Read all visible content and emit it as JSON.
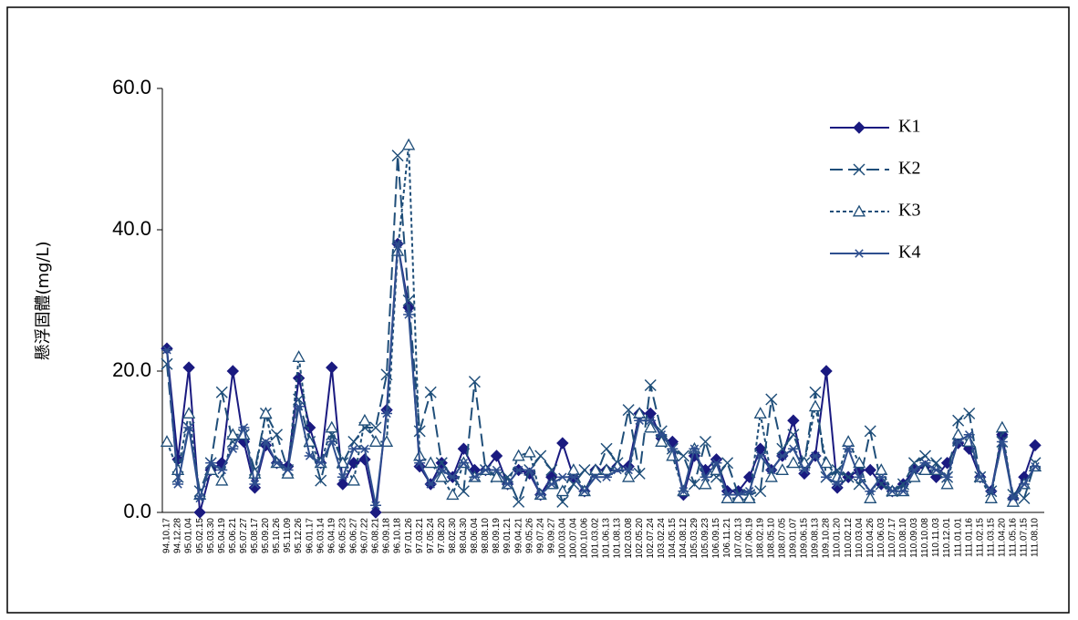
{
  "chart_data": {
    "type": "line",
    "y_label": "懸浮固體(mg/L)",
    "categories": [
      "94.10.17",
      "94.12.28",
      "95.01.04",
      "95.02.15",
      "95.03.30",
      "95.04.19",
      "95.06.21",
      "95.07.27",
      "95.08.17",
      "95.09.20",
      "95.10.26",
      "95.11.09",
      "95.12.26",
      "96.01.17",
      "96.03.14",
      "96.04.19",
      "96.05.23",
      "96.06.27",
      "96.07.22",
      "96.08.21",
      "96.09.18",
      "96.10.18",
      "97.01.26",
      "97.03.21",
      "97.05.24",
      "97.08.20",
      "98.02.30",
      "98.04.30",
      "98.06.04",
      "98.08.10",
      "98.09.19",
      "99.01.21",
      "99.04.21",
      "99.05.26",
      "99.07.24",
      "99.09.27",
      "100.03.04",
      "100.07.04",
      "100.10.06",
      "101.03.02",
      "101.06.13",
      "101.08.13",
      "102.03.08",
      "102.05.20",
      "102.07.24",
      "103.02.24",
      "104.05.15",
      "104.08.12",
      "105.03.29",
      "105.09.23",
      "106.09.15",
      "106.11.21",
      "107.02.13",
      "107.06.19",
      "108.02.19",
      "108.05.10",
      "108.07.05",
      "109.01.07",
      "109.06.15",
      "109.08.13",
      "109.10.28",
      "110.01.20",
      "110.02.12",
      "110.03.04",
      "110.04.26",
      "110.06.03",
      "110.07.17",
      "110.08.10",
      "110.09.03",
      "110.10.08",
      "110.11.03",
      "110.12.01",
      "111.01.01",
      "111.01.16",
      "111.02.15",
      "111.03.15",
      "111.04.20",
      "111.05.16",
      "111.07.15",
      "111.08.10"
    ],
    "series": [
      {
        "name": "K1",
        "color": "#1a1a80",
        "marker": "diamond",
        "dash": "none",
        "values": [
          23.2,
          7.5,
          20.5,
          0,
          6,
          7,
          20,
          10,
          3.5,
          9.5,
          7,
          6.5,
          19,
          12,
          7,
          20.5,
          4,
          7,
          7.5,
          0,
          14.5,
          38,
          29,
          6.5,
          4,
          7,
          5,
          9,
          6,
          6,
          8,
          4,
          6,
          5.5,
          2.5,
          5,
          9.8,
          5,
          3,
          6,
          6,
          6.5,
          6.5,
          14,
          14,
          10.5,
          10,
          2.5,
          8,
          6,
          7.5,
          3,
          3,
          5,
          9,
          6,
          8,
          13,
          5.5,
          8,
          20,
          3.5,
          5,
          6,
          6,
          4,
          3,
          4,
          6,
          6.5,
          5,
          7,
          9.8,
          9,
          5,
          3,
          11,
          2,
          5,
          9.5
        ]
      },
      {
        "name": "K2",
        "color": "#1f4e79",
        "marker": "x",
        "dash": "14 6",
        "values": [
          21,
          5,
          12,
          3,
          7,
          17,
          10,
          11,
          6,
          14,
          11,
          6,
          16,
          10,
          4.5,
          11,
          7,
          10,
          12,
          12,
          19.5,
          50.5,
          30,
          11.5,
          17,
          7,
          5,
          3,
          18.5,
          6,
          5,
          5,
          1.5,
          6,
          8,
          6,
          1.5,
          4,
          6,
          5,
          9,
          7,
          14.5,
          5.5,
          18,
          11.5,
          9,
          8,
          4,
          10,
          5,
          7,
          2.5,
          2.5,
          3,
          16,
          9,
          11,
          7,
          17,
          5,
          6,
          5,
          4,
          11.5,
          4,
          3,
          4,
          7,
          8,
          7,
          5,
          13,
          14,
          5,
          3,
          10,
          2.5,
          2,
          7
        ]
      },
      {
        "name": "K3",
        "color": "#1f4e79",
        "marker": "triangle",
        "dash": "4 3",
        "values": [
          10,
          6,
          14,
          2.5,
          6,
          4.5,
          11,
          11,
          5.5,
          14,
          7,
          5.5,
          22,
          10,
          7,
          12,
          7,
          4.5,
          13,
          10,
          10,
          37,
          52,
          8,
          7,
          5,
          2.5,
          7,
          5,
          6,
          5,
          4,
          8,
          8.5,
          2.5,
          4,
          3,
          6,
          3,
          6,
          6,
          6.5,
          5,
          14,
          12,
          10,
          8,
          3,
          9,
          4,
          6,
          2,
          2,
          2,
          14,
          5,
          6,
          7,
          7,
          15,
          7,
          5,
          10,
          7,
          2,
          6,
          3,
          3,
          5,
          6,
          6,
          4,
          11,
          10,
          5,
          2,
          12,
          1.5,
          4,
          6.5
        ]
      },
      {
        "name": "K4",
        "color": "#2e4f8f",
        "marker": "asterisk",
        "dash": "none",
        "values": [
          23,
          4,
          12,
          2,
          7,
          6,
          9,
          12,
          4,
          10,
          7,
          6,
          15,
          8,
          7,
          10,
          5,
          9,
          9,
          1,
          14,
          38,
          28,
          7,
          4,
          6,
          5,
          7,
          5,
          6,
          6,
          4,
          6,
          6,
          2.5,
          4,
          5,
          5,
          3,
          5,
          5,
          6,
          6,
          13,
          13,
          11,
          9,
          3,
          9,
          5,
          7,
          2.5,
          2.5,
          3,
          8,
          6,
          8,
          9,
          6,
          8,
          5,
          4,
          9,
          5,
          3,
          5,
          3,
          3,
          6,
          7,
          6,
          5,
          10,
          11,
          5,
          3,
          10,
          2,
          4,
          6.5
        ]
      }
    ],
    "ylim": [
      0,
      60
    ],
    "yticks": [
      {
        "value": 0,
        "label": "0.0"
      },
      {
        "value": 20,
        "label": "20.0"
      },
      {
        "value": 40,
        "label": "40.0"
      },
      {
        "value": 60,
        "label": "60.0"
      }
    ],
    "legend": "upper right"
  }
}
